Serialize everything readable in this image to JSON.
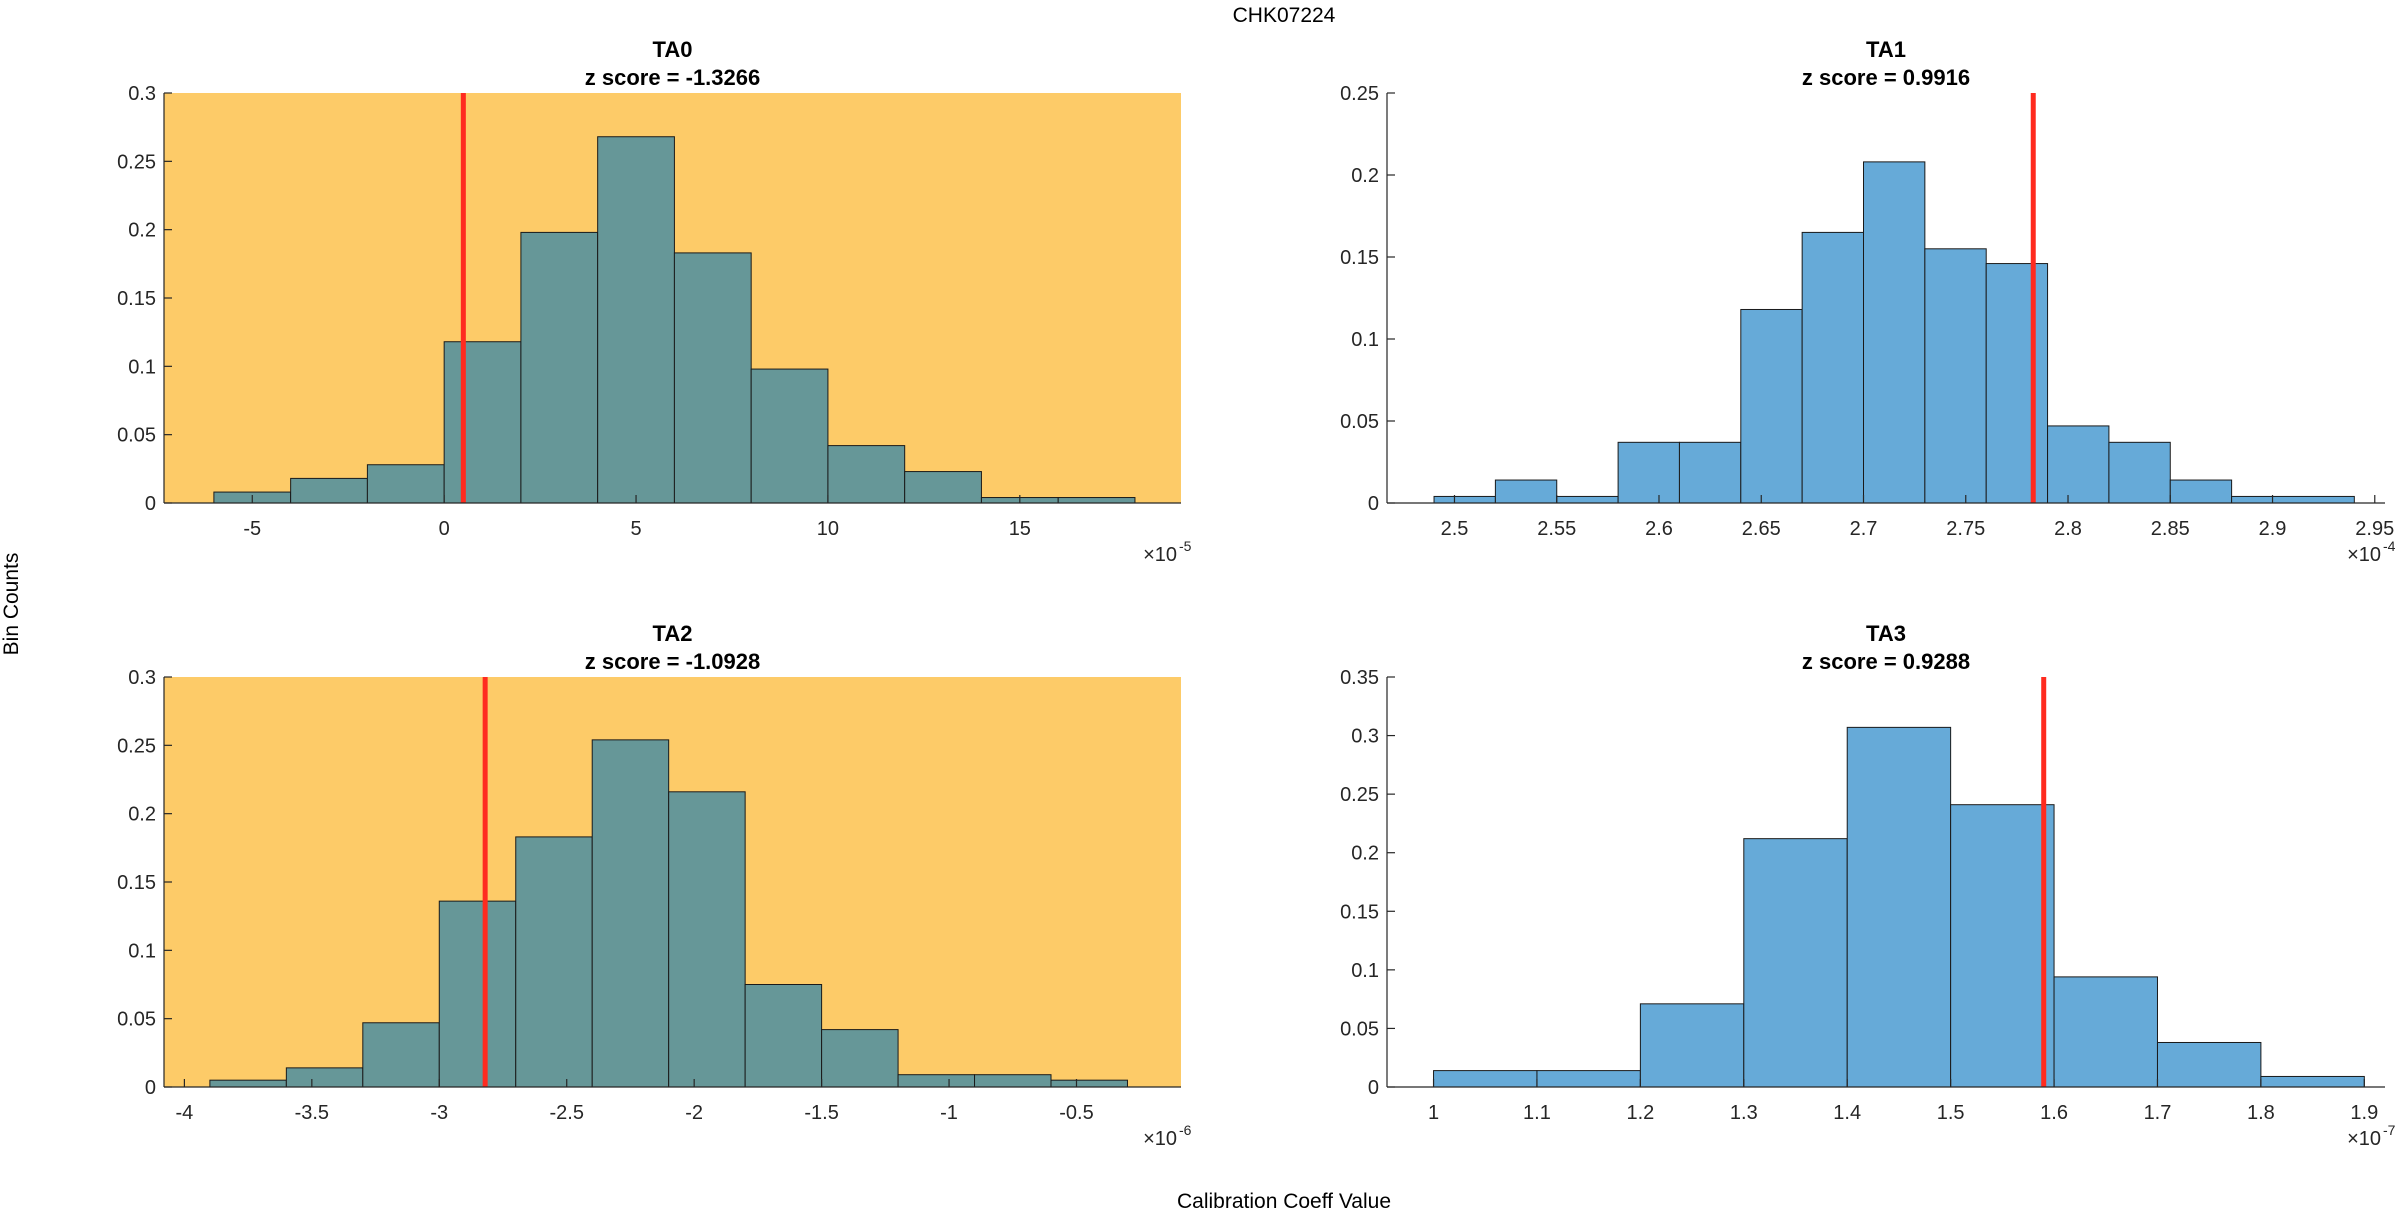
{
  "figure": {
    "title": "CHK07224",
    "xlabel": "Calibration Coeff Value",
    "ylabel": "Bin Counts"
  },
  "colors": {
    "highlight_bg": "#fdcb68",
    "bar_highlight": "#669798",
    "bar_normal": "#66aad8",
    "marker": "#ff2b1f",
    "axis": "#262626"
  },
  "chart_data": [
    {
      "type": "bar",
      "title": "TA0",
      "subtitle": "z score = -1.3266",
      "highlighted": true,
      "bin_edges": [
        -6,
        -4,
        -2,
        0,
        2,
        4,
        6,
        8,
        10,
        12,
        14,
        16,
        18
      ],
      "values": [
        0.008,
        0.018,
        0.028,
        0.118,
        0.198,
        0.268,
        0.183,
        0.098,
        0.042,
        0.023,
        0.004,
        0.004
      ],
      "marker_x": 0.5,
      "xlim": [
        -7.3,
        19.2
      ],
      "ylim": [
        0,
        0.3
      ],
      "xticks": [
        -5,
        0,
        5,
        10,
        15
      ],
      "xtick_labels": [
        "-5",
        "0",
        "5",
        "10",
        "15"
      ],
      "yticks": [
        0,
        0.05,
        0.1,
        0.15,
        0.2,
        0.25,
        0.3
      ],
      "ytick_labels": [
        "0",
        "0.05",
        "0.1",
        "0.15",
        "0.2",
        "0.25",
        "0.3"
      ],
      "exponent_base": "×10",
      "exponent": "-5"
    },
    {
      "type": "bar",
      "title": "TA1",
      "subtitle": "z score = 0.9916",
      "highlighted": false,
      "bin_edges": [
        2.49,
        2.5,
        2.52,
        2.55,
        2.58,
        2.61,
        2.64,
        2.67,
        2.7,
        2.73,
        2.76,
        2.79,
        2.82,
        2.85,
        2.88,
        2.9,
        2.94
      ],
      "values": [
        0.004,
        0.004,
        0.014,
        0.004,
        0.037,
        0.037,
        0.118,
        0.165,
        0.208,
        0.155,
        0.146,
        0.047,
        0.037,
        0.014,
        0.004,
        0.004
      ],
      "marker_x": 2.783,
      "xlim": [
        2.467,
        2.955
      ],
      "ylim": [
        0,
        0.25
      ],
      "xticks": [
        2.5,
        2.55,
        2.6,
        2.65,
        2.7,
        2.75,
        2.8,
        2.85,
        2.9,
        2.95
      ],
      "xtick_labels": [
        "2.5",
        "2.55",
        "2.6",
        "2.65",
        "2.7",
        "2.75",
        "2.8",
        "2.85",
        "2.9",
        "2.95"
      ],
      "yticks": [
        0,
        0.05,
        0.1,
        0.15,
        0.2,
        0.25
      ],
      "ytick_labels": [
        "0",
        "0.05",
        "0.1",
        "0.15",
        "0.2",
        "0.25"
      ],
      "exponent_base": "×10",
      "exponent": "-4"
    },
    {
      "type": "bar",
      "title": "TA2",
      "subtitle": "z score = -1.0928",
      "highlighted": true,
      "bin_edges": [
        -3.9,
        -3.6,
        -3.3,
        -3.0,
        -2.7,
        -2.4,
        -2.1,
        -1.8,
        -1.5,
        -1.2,
        -0.9,
        -0.6,
        -0.3
      ],
      "values": [
        0.005,
        0.014,
        0.047,
        0.136,
        0.183,
        0.254,
        0.216,
        0.075,
        0.042,
        0.009,
        0.009,
        0.005
      ],
      "marker_x": -2.82,
      "xlim": [
        -4.08,
        -0.09
      ],
      "ylim": [
        0,
        0.3
      ],
      "xticks": [
        -4,
        -3.5,
        -3,
        -2.5,
        -2,
        -1.5,
        -1,
        -0.5
      ],
      "xtick_labels": [
        "-4",
        "-3.5",
        "-3",
        "-2.5",
        "-2",
        "-1.5",
        "-1",
        "-0.5"
      ],
      "yticks": [
        0,
        0.05,
        0.1,
        0.15,
        0.2,
        0.25,
        0.3
      ],
      "ytick_labels": [
        "0",
        "0.05",
        "0.1",
        "0.15",
        "0.2",
        "0.25",
        "0.3"
      ],
      "exponent_base": "×10",
      "exponent": "-6"
    },
    {
      "type": "bar",
      "title": "TA3",
      "subtitle": "z score = 0.9288",
      "highlighted": false,
      "bin_edges": [
        1.0,
        1.1,
        1.2,
        1.3,
        1.4,
        1.5,
        1.6,
        1.7,
        1.8,
        1.9
      ],
      "values": [
        0.014,
        0.014,
        0.071,
        0.212,
        0.307,
        0.241,
        0.094,
        0.038,
        0.009
      ],
      "marker_x": 1.59,
      "xlim": [
        0.955,
        1.92
      ],
      "ylim": [
        0,
        0.35
      ],
      "xticks": [
        1,
        1.1,
        1.2,
        1.3,
        1.4,
        1.5,
        1.6,
        1.7,
        1.8,
        1.9
      ],
      "xtick_labels": [
        "1",
        "1.1",
        "1.2",
        "1.3",
        "1.4",
        "1.5",
        "1.6",
        "1.7",
        "1.8",
        "1.9"
      ],
      "yticks": [
        0,
        0.05,
        0.1,
        0.15,
        0.2,
        0.25,
        0.3,
        0.35
      ],
      "ytick_labels": [
        "0",
        "0.05",
        "0.1",
        "0.15",
        "0.2",
        "0.25",
        "0.3",
        "0.35"
      ],
      "exponent_base": "×10",
      "exponent": "-7"
    }
  ]
}
